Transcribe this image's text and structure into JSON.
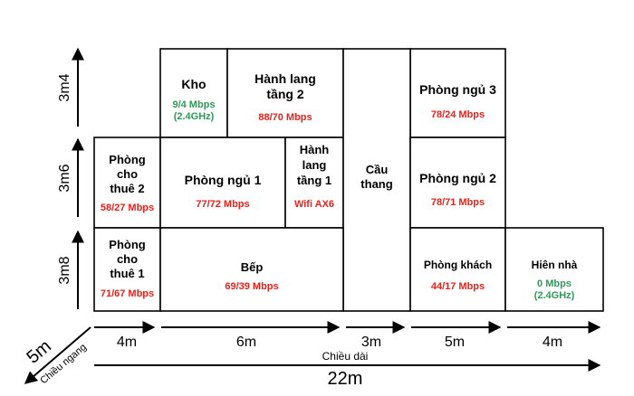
{
  "colors": {
    "speed_red": "#e8221b",
    "speed_green": "#2e9a55",
    "line": "#000000"
  },
  "rooms": [
    {
      "id": "kho",
      "name": [
        "Kho"
      ],
      "speed": "9/4 Mbps",
      "speed_extra": "(2.4GHz)",
      "speed_color": "green"
    },
    {
      "id": "hanh-lang-tang-2",
      "name": [
        "Hành lang",
        "tầng 2"
      ],
      "speed": "88/70 Mbps",
      "speed_color": "red"
    },
    {
      "id": "phong-ngu-3",
      "name": [
        "Phòng ngủ 3"
      ],
      "speed": "78/24 Mbps",
      "speed_color": "red"
    },
    {
      "id": "phong-cho-thue-2",
      "name": [
        "Phòng",
        "cho",
        "thuê 2"
      ],
      "speed": "58/27 Mbps",
      "speed_color": "red"
    },
    {
      "id": "phong-ngu-1",
      "name": [
        "Phòng ngủ 1"
      ],
      "speed": "77/72 Mbps",
      "speed_color": "red"
    },
    {
      "id": "hanh-lang-tang-1",
      "name": [
        "Hành",
        "lang",
        "tầng 1"
      ],
      "speed": "Wifi AX6",
      "speed_color": "red"
    },
    {
      "id": "cau-thang",
      "name": [
        "Cầu",
        "thang"
      ],
      "speed": "",
      "speed_color": "red"
    },
    {
      "id": "phong-ngu-2",
      "name": [
        "Phòng ngủ 2"
      ],
      "speed": "78/71 Mbps",
      "speed_color": "red"
    },
    {
      "id": "phong-cho-thue-1",
      "name": [
        "Phòng",
        "cho",
        "thuê 1"
      ],
      "speed": "71/67 Mbps",
      "speed_color": "red"
    },
    {
      "id": "bep",
      "name": [
        "Bếp"
      ],
      "speed": "69/39 Mbps",
      "speed_color": "red"
    },
    {
      "id": "phong-khach",
      "name": [
        "Phòng khách"
      ],
      "speed": "44/17 Mbps",
      "speed_color": "red"
    },
    {
      "id": "hien-nha",
      "name": [
        "Hiên nhà"
      ],
      "speed": "0 Mbps",
      "speed_extra": "(2.4GHz)",
      "speed_color": "green"
    }
  ],
  "dimensions": {
    "heights": [
      "3m8",
      "3m6",
      "3m4"
    ],
    "widths": [
      "4m",
      "6m",
      "3m",
      "5m",
      "4m"
    ],
    "total_length_label": "Chiều dài",
    "total_length": "22m",
    "depth_label": "Chiều ngang",
    "depth": "5m"
  }
}
